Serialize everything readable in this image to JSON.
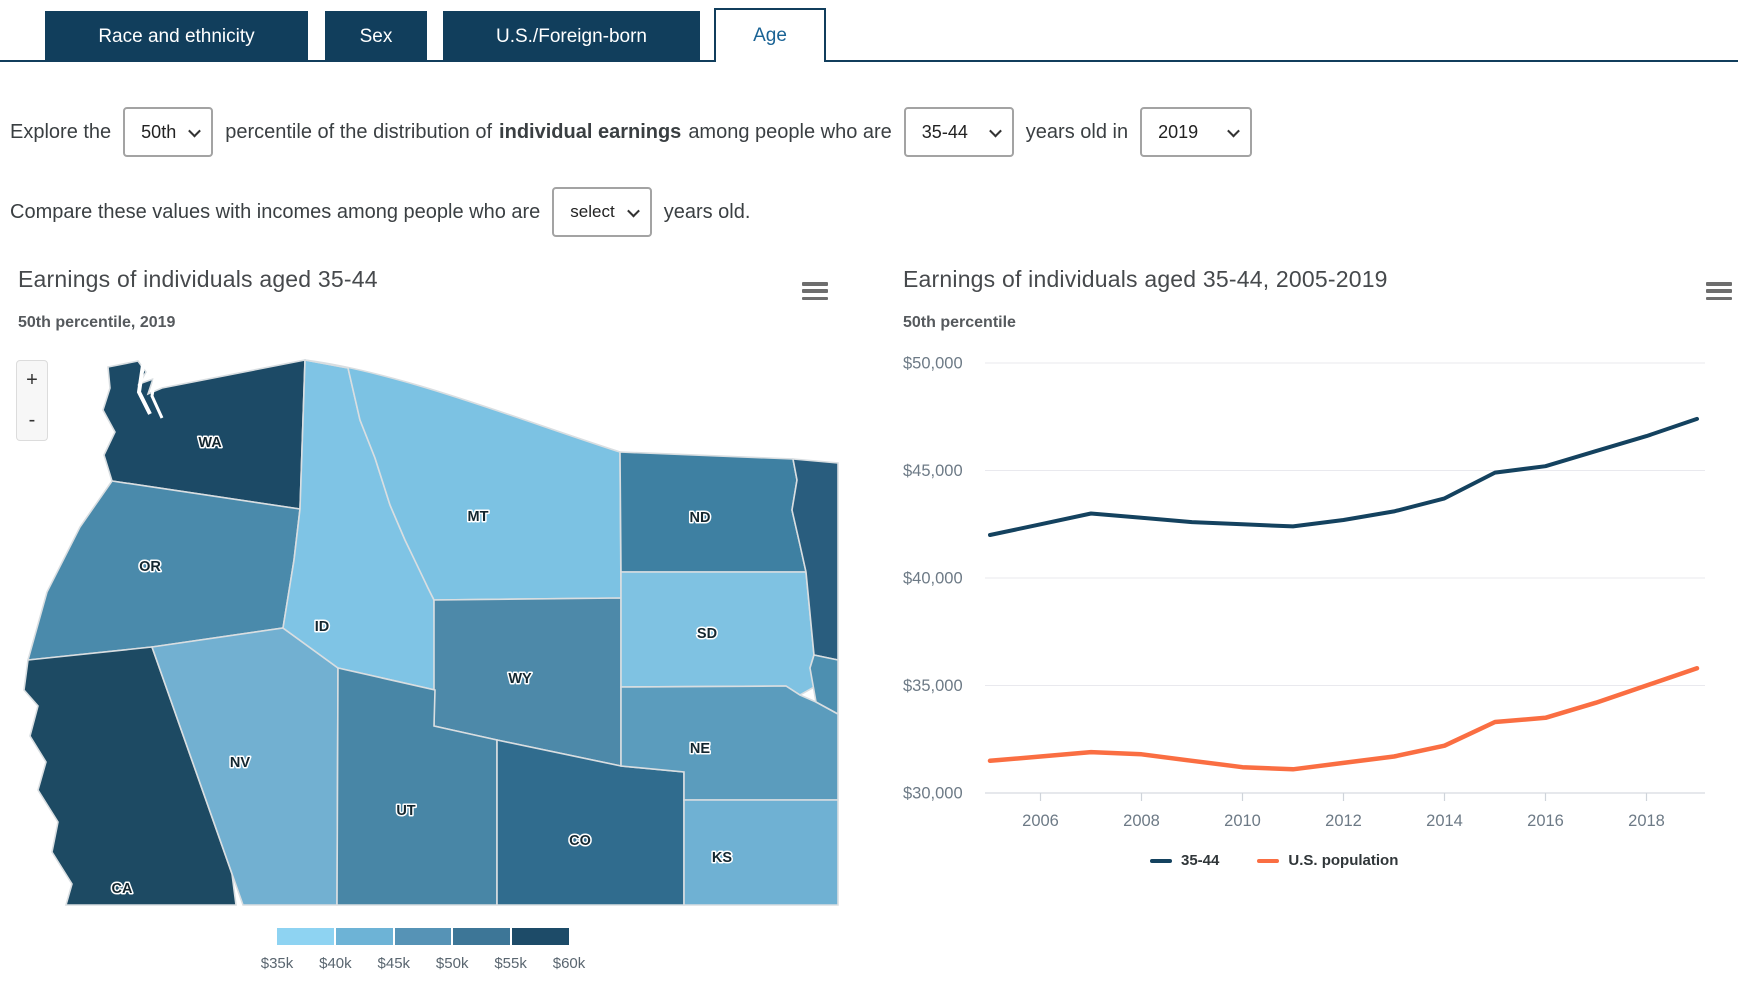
{
  "tabs": {
    "items": [
      {
        "label": "Race and ethnicity",
        "active": false
      },
      {
        "label": "Sex",
        "active": false
      },
      {
        "label": "U.S./Foreign-born",
        "active": false
      },
      {
        "label": "Age",
        "active": true
      }
    ]
  },
  "controls": {
    "sentence1": {
      "prefix": "Explore the",
      "percentile_value": "50th",
      "middle": "percentile of the distribution of",
      "emphasis": "individual earnings",
      "after_emphasis": "among people who are",
      "age_value": "35-44",
      "connector": "years old in",
      "year_value": "2019"
    },
    "sentence2": {
      "prefix": "Compare these values with incomes among people who are",
      "select_value": "select",
      "suffix": "years old."
    }
  },
  "map_panel": {
    "title": "Earnings of individuals aged 35-44",
    "subtitle": "50th percentile, 2019",
    "zoom_in_label": "+",
    "zoom_out_label": "-",
    "menu_icon": "hamburger-menu-icon",
    "states": [
      {
        "abbr": "WA",
        "color": "#1c4a66",
        "bucket": "$55k-$60k"
      },
      {
        "abbr": "OR",
        "color": "#4a8aab",
        "bucket": "$45k-$50k"
      },
      {
        "abbr": "CA",
        "color": "#1d4a63",
        "bucket": "$55k-$60k"
      },
      {
        "abbr": "NV",
        "color": "#72b0d1",
        "bucket": "$40k-$45k"
      },
      {
        "abbr": "ID",
        "color": "#7fc4e5",
        "bucket": "$35k-$40k"
      },
      {
        "abbr": "MT",
        "color": "#7cc2e3",
        "bucket": "$35k-$40k"
      },
      {
        "abbr": "WY",
        "color": "#4d89a9",
        "bucket": "$45k-$50k"
      },
      {
        "abbr": "UT",
        "color": "#4886a6",
        "bucket": "$45k-$50k"
      },
      {
        "abbr": "CO",
        "color": "#306c8e",
        "bucket": "$50k-$55k"
      },
      {
        "abbr": "ND",
        "color": "#3e80a2",
        "bucket": "$50k-$55k"
      },
      {
        "abbr": "SD",
        "color": "#7fc2e2",
        "bucket": "$35k-$40k"
      },
      {
        "abbr": "NE",
        "color": "#5b9cbd",
        "bucket": "$40k-$45k"
      },
      {
        "abbr": "KS",
        "color": "#6fb1d3",
        "bucket": "$40k-$45k"
      }
    ],
    "edge_neighbor_colors": {
      "mn_sliver": "#295d7e",
      "ia_sliver": "#4d8fb0"
    },
    "legend": {
      "labels": [
        "$35k",
        "$40k",
        "$45k",
        "$50k",
        "$55k",
        "$60k"
      ],
      "colors": [
        "#8ed3f2",
        "#6db3d6",
        "#5693b6",
        "#3d7697",
        "#1d4b68"
      ]
    }
  },
  "chart_panel": {
    "title": "Earnings of individuals aged 35-44, 2005-2019",
    "subtitle": "50th percentile",
    "menu_icon": "hamburger-menu-icon",
    "legend": [
      {
        "label": "35-44",
        "color": "#14425f"
      },
      {
        "label": "U.S. population",
        "color": "#fa6e42"
      }
    ]
  },
  "chart_data": {
    "type": "line",
    "title": "Earnings of individuals aged 35-44, 2005-2019",
    "subtitle": "50th percentile",
    "x": [
      2005,
      2006,
      2007,
      2008,
      2009,
      2010,
      2011,
      2012,
      2013,
      2014,
      2015,
      2016,
      2017,
      2018,
      2019
    ],
    "series": [
      {
        "name": "35-44",
        "color": "#14425f",
        "values": [
          42000,
          42500,
          43000,
          42800,
          42600,
          42500,
          42400,
          42700,
          43100,
          43700,
          44900,
          45200,
          45900,
          46600,
          47400
        ]
      },
      {
        "name": "U.S. population",
        "color": "#fa6e42",
        "values": [
          31500,
          31700,
          31900,
          31800,
          31500,
          31200,
          31100,
          31400,
          31700,
          32200,
          33300,
          33500,
          34200,
          35000,
          35800
        ]
      }
    ],
    "ylim": [
      30000,
      50000
    ],
    "y_ticks": [
      {
        "value": 50000,
        "label": "$50,000"
      },
      {
        "value": 45000,
        "label": "$45,000"
      },
      {
        "value": 40000,
        "label": "$40,000"
      },
      {
        "value": 35000,
        "label": "$35,000"
      },
      {
        "value": 30000,
        "label": "$30,000"
      }
    ],
    "x_ticks": [
      2006,
      2008,
      2010,
      2012,
      2014,
      2016,
      2018
    ],
    "grid": true,
    "legend_position": "bottom",
    "xlabel": "",
    "ylabel": ""
  }
}
